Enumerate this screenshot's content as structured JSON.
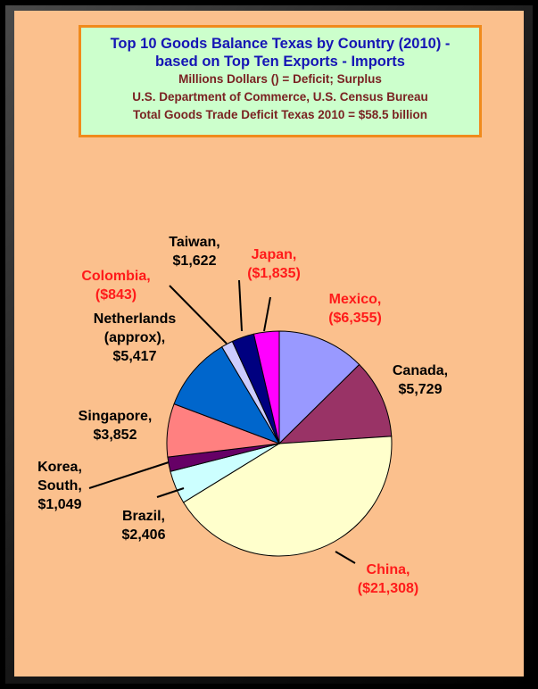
{
  "title_lines": [
    "Top 10 Goods Balance Texas by Country (2010) -",
    "based on Top Ten Exports - Imports"
  ],
  "subtitle_lines": [
    "Millions Dollars () = Deficit; Surplus",
    "U.S. Department of Commerce, U.S. Census Bureau",
    "Total Goods Trade Deficit Texas 2010 = $58.5 billion"
  ],
  "colors": {
    "panel": "#fbc08d",
    "title_box": "#ccffcc",
    "title_border": "#f08a1c",
    "title_text": "#1515b5",
    "subtitle_text": "#7a2222",
    "deficit_label": "#ff1a1a",
    "surplus_label": "#000000"
  },
  "chart_data": {
    "type": "pie",
    "unit": "Millions Dollars",
    "slices": [
      {
        "country": "Mexico",
        "value": -6355,
        "label_lines": [
          "Mexico,",
          "($6,355)"
        ],
        "color": "#9999ff",
        "deficit": true
      },
      {
        "country": "Canada",
        "value": 5729,
        "label_lines": [
          "Canada,",
          "$5,729"
        ],
        "color": "#993366",
        "deficit": false
      },
      {
        "country": "China",
        "value": -21308,
        "label_lines": [
          "China,",
          "($21,308)"
        ],
        "color": "#ffffcc",
        "deficit": true
      },
      {
        "country": "Brazil",
        "value": 2406,
        "label_lines": [
          "Brazil,",
          "$2,406"
        ],
        "color": "#ccffff",
        "deficit": false
      },
      {
        "country": "Korea, South",
        "value": 1049,
        "label_lines": [
          "Korea,",
          "South,",
          "$1,049"
        ],
        "color": "#660066",
        "deficit": false
      },
      {
        "country": "Singapore",
        "value": 3852,
        "label_lines": [
          "Singapore,",
          "$3,852"
        ],
        "color": "#ff8080",
        "deficit": false
      },
      {
        "country": "Netherlands",
        "value": 5417,
        "label_lines": [
          "Netherlands",
          "(approx),",
          "$5,417"
        ],
        "color": "#0066cc",
        "deficit": false
      },
      {
        "country": "Colombia",
        "value": -843,
        "label_lines": [
          "Colombia,",
          "($843)"
        ],
        "color": "#ccccff",
        "deficit": true
      },
      {
        "country": "Taiwan",
        "value": 1622,
        "label_lines": [
          "Taiwan,",
          "$1,622"
        ],
        "color": "#000080",
        "deficit": false
      },
      {
        "country": "Japan",
        "value": -1835,
        "label_lines": [
          "Japan,",
          "($1,835)"
        ],
        "color": "#ff00ff",
        "deficit": true
      }
    ]
  }
}
